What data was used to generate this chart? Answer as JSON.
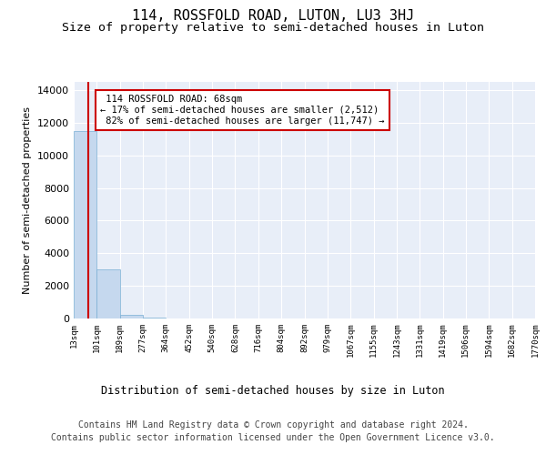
{
  "title": "114, ROSSFOLD ROAD, LUTON, LU3 3HJ",
  "subtitle": "Size of property relative to semi-detached houses in Luton",
  "xlabel": "Distribution of semi-detached houses by size in Luton",
  "ylabel": "Number of semi-detached properties",
  "bar_color": "#c5d8ee",
  "bar_edge_color": "#7aafd4",
  "axes_background": "#e8eef8",
  "property_size": 68,
  "property_label": "114 ROSSFOLD ROAD: 68sqm",
  "smaller_pct": 17,
  "smaller_n": "2,512",
  "larger_pct": 82,
  "larger_n": "11,747",
  "annotation_box_color": "#cc0000",
  "vline_color": "#cc0000",
  "bin_edges": [
    13,
    101,
    189,
    277,
    364,
    452,
    540,
    628,
    716,
    804,
    892,
    979,
    1067,
    1155,
    1243,
    1331,
    1419,
    1506,
    1594,
    1682,
    1770
  ],
  "bar_heights": [
    11500,
    3000,
    200,
    30,
    10,
    5,
    3,
    2,
    1,
    1,
    1,
    0,
    0,
    0,
    0,
    0,
    0,
    0,
    0,
    0
  ],
  "ylim": [
    0,
    14500
  ],
  "yticks": [
    0,
    2000,
    4000,
    6000,
    8000,
    10000,
    12000,
    14000
  ],
  "tick_labels": [
    "13sqm",
    "101sqm",
    "189sqm",
    "277sqm",
    "364sqm",
    "452sqm",
    "540sqm",
    "628sqm",
    "716sqm",
    "804sqm",
    "892sqm",
    "979sqm",
    "1067sqm",
    "1155sqm",
    "1243sqm",
    "1331sqm",
    "1419sqm",
    "1506sqm",
    "1594sqm",
    "1682sqm",
    "1770sqm"
  ],
  "footer_line1": "Contains HM Land Registry data © Crown copyright and database right 2024.",
  "footer_line2": "Contains public sector information licensed under the Open Government Licence v3.0.",
  "title_fontsize": 11,
  "subtitle_fontsize": 9.5,
  "footer_fontsize": 7,
  "grid_color": "#ffffff",
  "grid_linewidth": 0.8
}
